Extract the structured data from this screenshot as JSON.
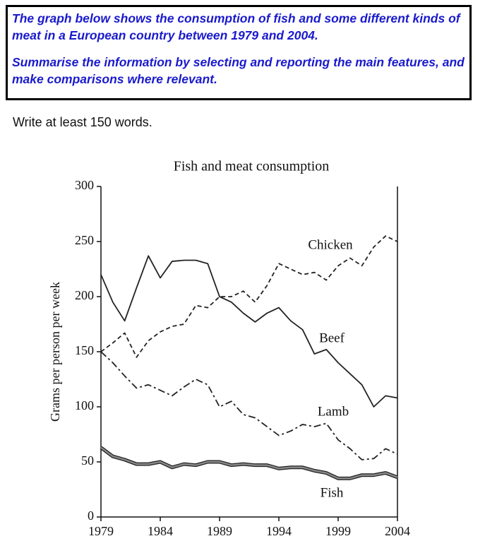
{
  "prompt": {
    "lines": [
      "The graph below shows the consumption of fish and some different kinds of meat in a European country between 1979 and 2004.",
      "Summarise the information by selecting and reporting the main features, and make comparisons where relevant."
    ]
  },
  "instruction": "Write at least 150 words.",
  "chart_data": {
    "type": "line",
    "title": "Fish and meat consumption",
    "y_label": "Grams per person per week",
    "x": [
      1979,
      1980,
      1981,
      1982,
      1983,
      1984,
      1985,
      1986,
      1987,
      1988,
      1989,
      1990,
      1991,
      1992,
      1993,
      1994,
      1995,
      1996,
      1997,
      1998,
      1999,
      2000,
      2001,
      2002,
      2003,
      2004
    ],
    "xlim": [
      1979,
      2004
    ],
    "xticks": [
      1979,
      1984,
      1989,
      1994,
      1999,
      2004
    ],
    "ylim": [
      0,
      300
    ],
    "yticks": [
      0,
      50,
      100,
      150,
      200,
      250,
      300
    ],
    "series": [
      {
        "name": "Chicken",
        "color": "#222222",
        "style": "dashed",
        "values": [
          150,
          158,
          167,
          145,
          160,
          168,
          173,
          175,
          192,
          190,
          200,
          200,
          205,
          195,
          210,
          230,
          225,
          220,
          222,
          215,
          228,
          235,
          228,
          245,
          255,
          250
        ]
      },
      {
        "name": "Beef",
        "color": "#222222",
        "style": "solid",
        "values": [
          220,
          195,
          178,
          208,
          237,
          217,
          232,
          233,
          233,
          230,
          200,
          195,
          185,
          177,
          185,
          190,
          178,
          170,
          148,
          152,
          140,
          130,
          120,
          100,
          110,
          108
        ]
      },
      {
        "name": "Lamb",
        "color": "#222222",
        "style": "dashdot",
        "values": [
          150,
          140,
          128,
          117,
          120,
          115,
          110,
          118,
          125,
          120,
          100,
          105,
          93,
          90,
          82,
          74,
          78,
          84,
          82,
          85,
          70,
          62,
          52,
          53,
          62,
          57
        ]
      },
      {
        "name": "Fish",
        "color": "#888888",
        "style": "double",
        "values": [
          63,
          55,
          52,
          48,
          48,
          50,
          45,
          48,
          47,
          50,
          50,
          47,
          48,
          47,
          47,
          44,
          45,
          45,
          42,
          40,
          35,
          35,
          38,
          38,
          40,
          36
        ]
      }
    ]
  }
}
